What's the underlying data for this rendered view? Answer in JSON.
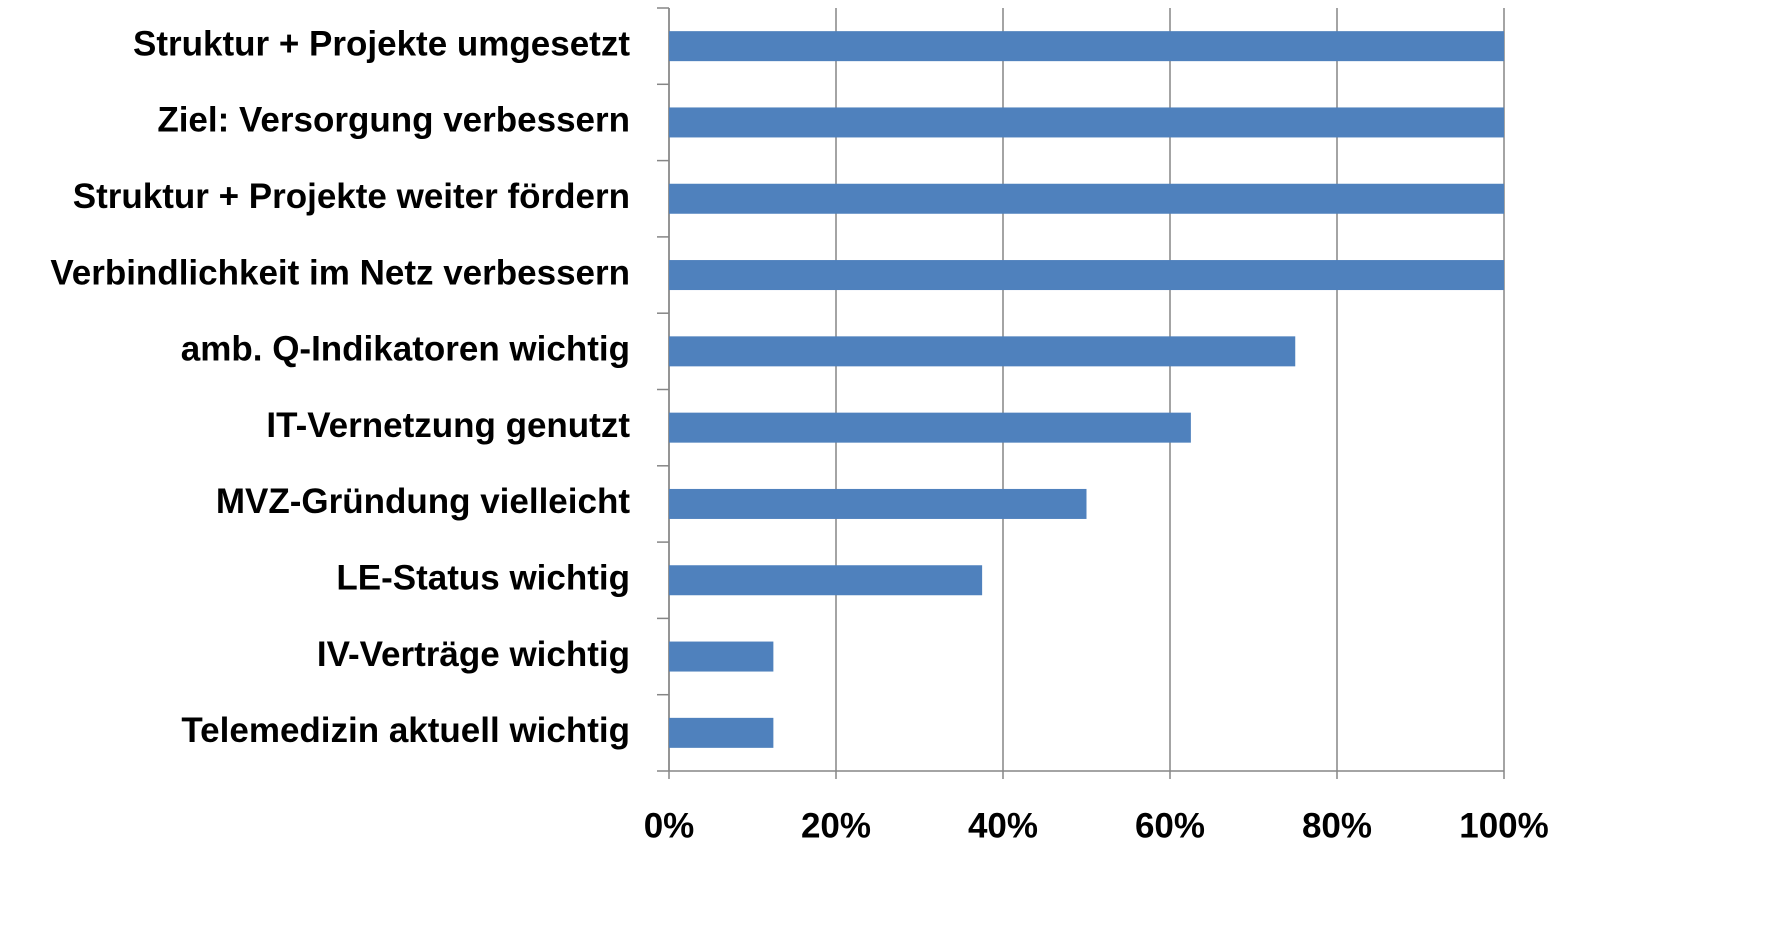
{
  "chart_data": {
    "type": "hbar",
    "categories": [
      "Struktur + Projekte umgesetzt",
      "Ziel: Versorgung verbessern",
      "Struktur + Projekte weiter fördern",
      "Verbindlichkeit im Netz verbessern",
      "amb. Q-Indikatoren wichtig",
      "IT-Vernetzung genutzt",
      "MVZ-Gründung vielleicht",
      "LE-Status wichtig",
      "IV-Verträge wichtig",
      "Telemedizin aktuell wichtig"
    ],
    "values": [
      100,
      100,
      100,
      100,
      75,
      62.5,
      50,
      37.5,
      12.5,
      12.5
    ],
    "color": "#4f81bd",
    "xlim": [
      0,
      100
    ],
    "xticks": [
      {
        "value": 0,
        "label": "0%"
      },
      {
        "value": 20,
        "label": "20%"
      },
      {
        "value": 40,
        "label": "40%"
      },
      {
        "value": 60,
        "label": "60%"
      },
      {
        "value": 80,
        "label": "80%"
      },
      {
        "value": 100,
        "label": "100%"
      }
    ],
    "grid": true
  }
}
